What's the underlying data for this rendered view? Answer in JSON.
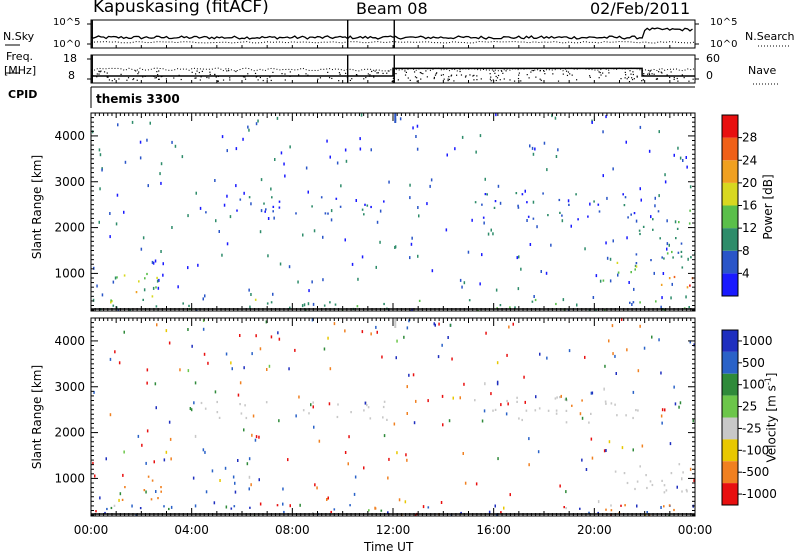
{
  "header": {
    "station": "Kapuskasing (fitACF)",
    "beam": "Beam 08",
    "date": "02/Feb/2011"
  },
  "noise_panel": {
    "left_label": "N.Sky",
    "right_label": "N.Search",
    "left_ticks": [
      "10^5",
      "10^0"
    ],
    "right_ticks": [
      "10^5",
      "10^0"
    ]
  },
  "freq_panel": {
    "left_label_1": "Freq.",
    "left_label_2": "[MHz]",
    "right_label": "Nave",
    "left_ticks": [
      "18",
      "8"
    ],
    "right_ticks": [
      "60",
      "0"
    ]
  },
  "cpid_label": "CPID",
  "program_label": "themis 3300",
  "axis": {
    "xlabel": "Time UT",
    "ylabel": "Slant Range [km]",
    "xticks": [
      "00:00",
      "04:00",
      "08:00",
      "12:00",
      "16:00",
      "20:00",
      "00:00"
    ],
    "yticks": [
      "1000",
      "2000",
      "3000",
      "4000"
    ]
  },
  "power_scale": {
    "label": "Power [dB]",
    "ticks": [
      "4",
      "8",
      "12",
      "16",
      "20",
      "24",
      "28"
    ],
    "colors": [
      "#1a1aff",
      "#2a55c8",
      "#2e8c6a",
      "#5abf4a",
      "#d8d820",
      "#f0a020",
      "#f06018",
      "#e81010"
    ]
  },
  "velocity_scale": {
    "label": "Velocity [m s",
    "label_sup": "-1",
    "label_end": "]",
    "ticks": [
      "1000",
      "500",
      "100",
      "25",
      "-25",
      "-100",
      "-500",
      "-1000"
    ],
    "colors": [
      "#1f2fbf",
      "#2a62c8",
      "#2f8a3a",
      "#6cc64a",
      "#c8c8c8",
      "#e8c800",
      "#f08020",
      "#e81010"
    ]
  },
  "chart_data": [
    {
      "type": "line",
      "title": "N.Sky / N.Search noise",
      "x_range_hours": [
        0,
        24
      ],
      "series": [
        {
          "name": "N.Sky"
        },
        {
          "name": "N.Search"
        }
      ]
    },
    {
      "type": "line",
      "title": "Freq. / Nave",
      "x_range_hours": [
        0,
        24
      ],
      "series": [
        {
          "name": "Freq.",
          "x": [
            0,
            12,
            12,
            21.9,
            21.9,
            24
          ],
          "values": [
            10.5,
            10.5,
            13.2,
            13.2,
            10.5,
            10.5
          ]
        },
        {
          "name": "Nave"
        }
      ]
    },
    {
      "type": "heatmap",
      "title": "Power [dB]",
      "xlabel": "Time UT",
      "ylabel": "Slant Range [km]",
      "x_range_hours": [
        0,
        24
      ],
      "ylim": [
        180,
        4500
      ],
      "zlim": [
        0,
        30
      ],
      "scatter_regions": [
        {
          "x": [
            4.0,
            11.9
          ],
          "y": [
            2300,
            2700
          ],
          "z": 6
        },
        {
          "x": [
            15.2,
            21.8
          ],
          "y": [
            2200,
            2800
          ],
          "z": 6
        },
        {
          "x": [
            0.0,
            24.0
          ],
          "y": [
            200,
            450
          ],
          "z": 12
        },
        {
          "x": [
            1.0,
            2.8
          ],
          "y": [
            500,
            1100
          ],
          "z": 16
        },
        {
          "x": [
            20.3,
            22.0
          ],
          "y": [
            800,
            1300
          ],
          "z": 14
        },
        {
          "x": [
            21.6,
            24.0
          ],
          "y": [
            700,
            1000
          ],
          "z": 26
        },
        {
          "x": [
            21.6,
            24.0
          ],
          "y": [
            1000,
            2400
          ],
          "z": 10
        }
      ]
    },
    {
      "type": "heatmap",
      "title": "Velocity [m s-1]",
      "xlabel": "Time UT",
      "ylabel": "Slant Range [km]",
      "x_range_hours": [
        0,
        24
      ],
      "ylim": [
        180,
        4500
      ],
      "zlim": [
        -1000,
        1000
      ],
      "scatter_regions": [
        {
          "x": [
            4.0,
            11.9
          ],
          "y": [
            2300,
            2700
          ],
          "z": 0
        },
        {
          "x": [
            15.2,
            21.8
          ],
          "y": [
            2200,
            2800
          ],
          "z": 0
        },
        {
          "x": [
            18.6,
            19.6
          ],
          "y": [
            2600,
            2900
          ],
          "z": -300
        },
        {
          "x": [
            1.0,
            2.8
          ],
          "y": [
            500,
            1100
          ],
          "z": -300
        },
        {
          "x": [
            20.5,
            24.0
          ],
          "y": [
            700,
            1400
          ],
          "z": 0
        },
        {
          "x": [
            0.0,
            24.0
          ],
          "y": [
            200,
            450
          ],
          "z": 0
        }
      ]
    }
  ]
}
